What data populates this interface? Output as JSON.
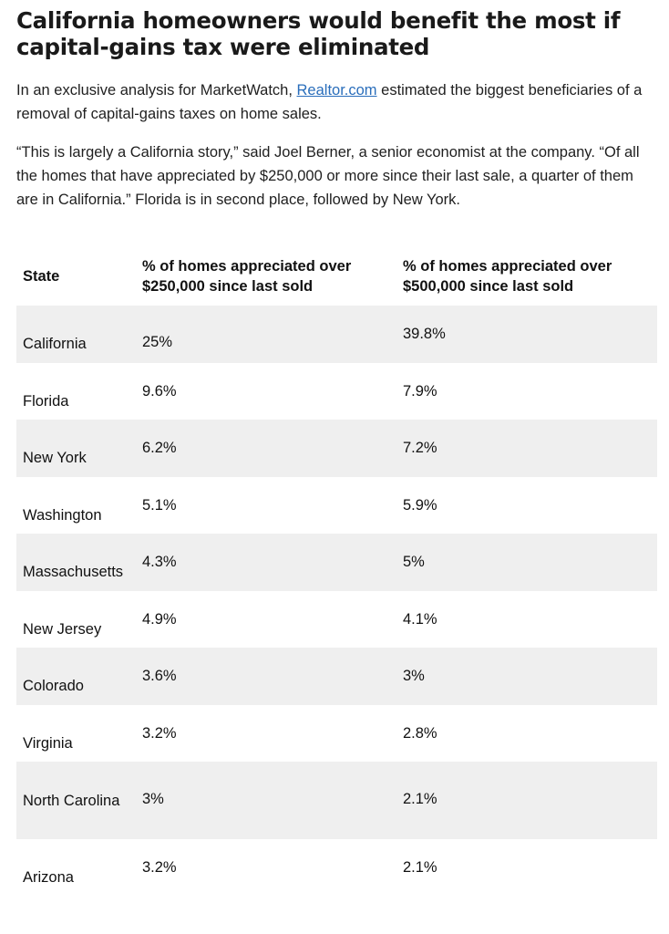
{
  "article": {
    "title": "California homeowners would benefit the most if capital-gains tax were eliminated",
    "intro_before_link": "In an exclusive analysis for MarketWatch, ",
    "intro_link": "Realtor.com",
    "intro_after_link": " estimated the biggest beneficiaries of a removal of capital-gains taxes on home sales.",
    "quote": "“This is largely a California story,” said Joel Berner, a senior economist at the company. “Of all the homes that have appreciated by $250,000 or more since their last sale, a quarter of them are in California.” Florida is in second place, followed by New York."
  },
  "table": {
    "headers": {
      "state": "State",
      "v250": "% of homes appreciated over $250,000 since last sold",
      "v500": "% of homes appreciated over $500,000 since last sold"
    },
    "rows": [
      {
        "state": "California",
        "v250": "25%",
        "v500": "39.8%"
      },
      {
        "state": "Florida",
        "v250": "9.6%",
        "v500": "7.9%"
      },
      {
        "state": "New York",
        "v250": "6.2%",
        "v500": "7.2%"
      },
      {
        "state": "Washington",
        "v250": "5.1%",
        "v500": "5.9%"
      },
      {
        "state": "Massachusetts",
        "v250": "4.3%",
        "v500": "5%"
      },
      {
        "state": "New Jersey",
        "v250": "4.9%",
        "v500": "4.1%"
      },
      {
        "state": "Colorado",
        "v250": "3.6%",
        "v500": "3%"
      },
      {
        "state": "Virginia",
        "v250": "3.2%",
        "v500": "2.8%"
      },
      {
        "state": "North Carolina",
        "v250": "3%",
        "v500": "2.1%"
      },
      {
        "state": "Arizona",
        "v250": "3.2%",
        "v500": "2.1%"
      }
    ]
  }
}
